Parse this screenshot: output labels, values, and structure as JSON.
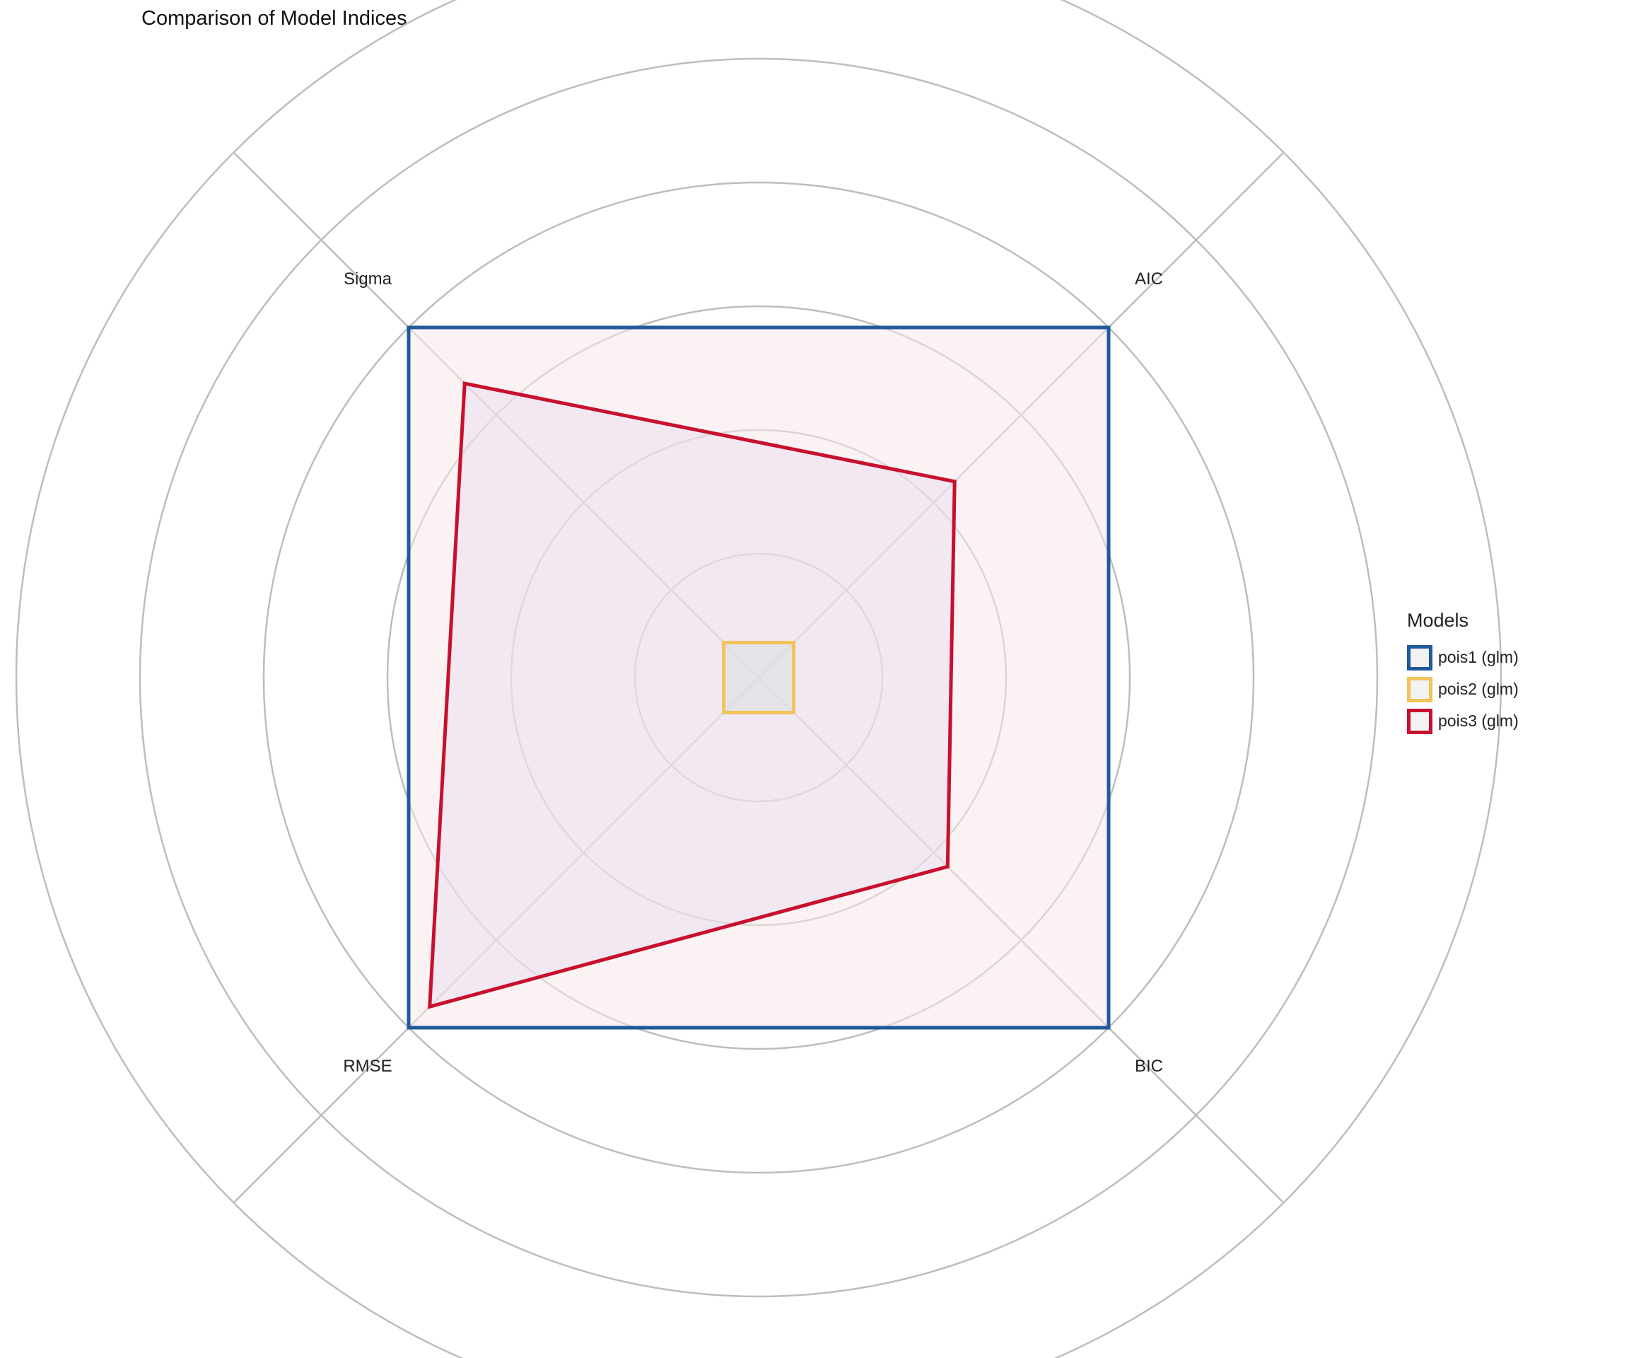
{
  "title": "Comparison of Model Indices",
  "chart_data": {
    "type": "radar",
    "title": "Comparison of Model Indices",
    "axes": [
      "AIC",
      "BIC",
      "RMSE",
      "Sigma"
    ],
    "rlim": [
      0,
      1.5
    ],
    "gridlines": [
      0.25,
      0.5,
      0.75,
      1.0,
      1.25,
      1.5
    ],
    "grid": true,
    "legend": {
      "title": "Models",
      "placement": "right"
    },
    "series": [
      {
        "name": "pois1 (glm)",
        "color": "#1f5a9b",
        "fill": "#f7eaea",
        "fill_opacity": 0.55,
        "values": [
          1.0,
          1.0,
          1.0,
          1.0
        ]
      },
      {
        "name": "pois2 (glm)",
        "color": "#f0c45a",
        "fill": "#d6e6d6",
        "fill_opacity": 0.5,
        "values": [
          0.1,
          0.1,
          0.1,
          0.1
        ]
      },
      {
        "name": "pois3 (glm)",
        "color": "#c8102e",
        "fill": "#e4dcef",
        "fill_opacity": 0.45,
        "values": [
          0.56,
          0.54,
          0.94,
          0.84
        ]
      }
    ]
  }
}
